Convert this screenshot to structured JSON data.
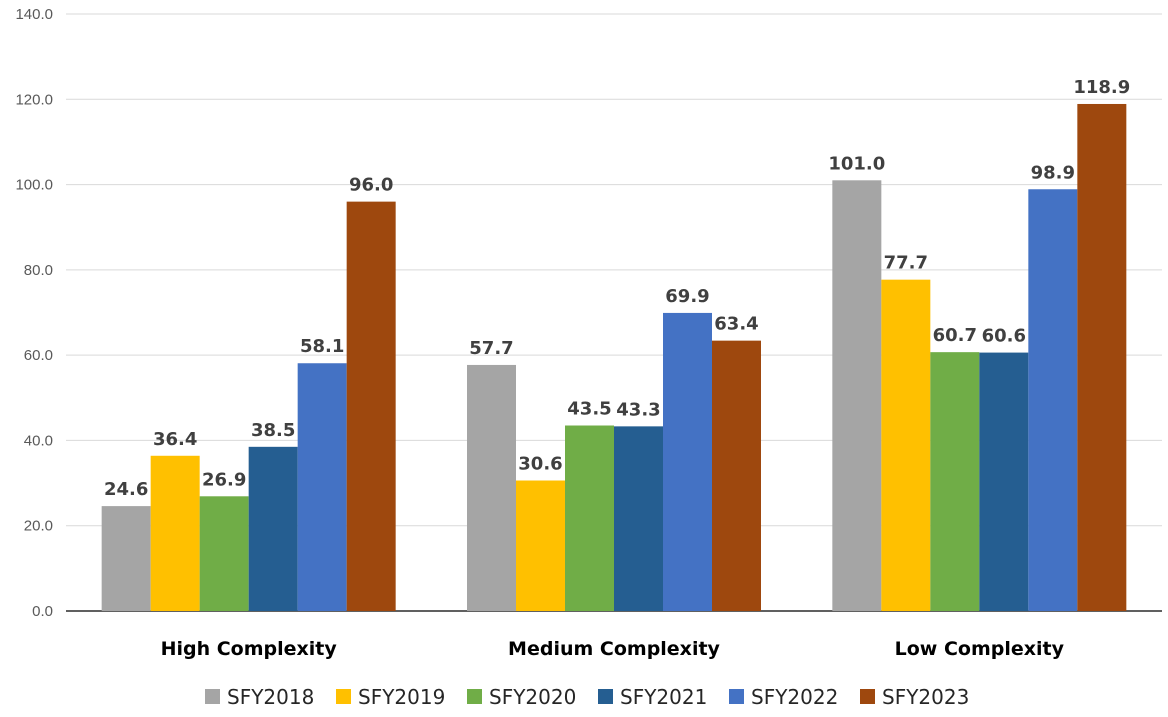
{
  "chart_data": {
    "type": "bar",
    "title": "",
    "xlabel": "",
    "ylabel": "",
    "ylim": [
      0,
      140
    ],
    "yticks": [
      "0.0",
      "20.0",
      "40.0",
      "60.0",
      "80.0",
      "100.0",
      "120.0",
      "140.0"
    ],
    "grid": true,
    "legend_position": "bottom",
    "categories": [
      "High Complexity",
      "Medium Complexity",
      "Low Complexity"
    ],
    "series": [
      {
        "name": "SFY2018",
        "color": "#a5a5a5",
        "values": [
          24.6,
          57.7,
          101.0
        ],
        "labels": [
          "24.6",
          "57.7",
          "101.0"
        ]
      },
      {
        "name": "SFY2019",
        "color": "#ffc000",
        "values": [
          36.4,
          30.6,
          77.7
        ],
        "labels": [
          "36.4",
          "30.6",
          "77.7"
        ]
      },
      {
        "name": "SFY2020",
        "color": "#70ad47",
        "values": [
          26.9,
          43.5,
          60.7
        ],
        "labels": [
          "26.9",
          "43.5",
          "60.7"
        ]
      },
      {
        "name": "SFY2021",
        "color": "#255e91",
        "values": [
          38.5,
          43.3,
          60.6
        ],
        "labels": [
          "38.5",
          "43.3",
          "60.6"
        ]
      },
      {
        "name": "SFY2022",
        "color": "#4472c4",
        "values": [
          58.1,
          69.9,
          98.9
        ],
        "labels": [
          "58.1",
          "69.9",
          "98.9"
        ]
      },
      {
        "name": "SFY2023",
        "color": "#9e480e",
        "values": [
          96.0,
          63.4,
          118.9
        ],
        "labels": [
          "96.0",
          "63.4",
          "118.9"
        ]
      }
    ]
  }
}
